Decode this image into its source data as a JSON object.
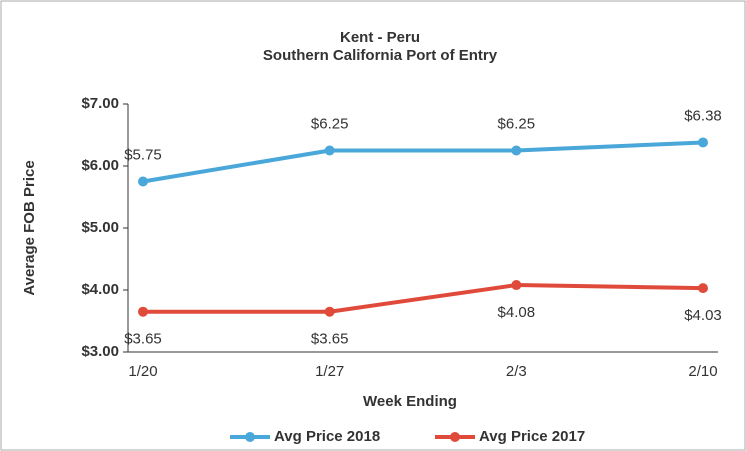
{
  "chart_data": {
    "type": "line",
    "title": [
      "Kent - Peru",
      "Southern California Port of Entry"
    ],
    "x_label": "Week Ending",
    "y_label": "Average FOB Price",
    "categories": [
      "1/20",
      "1/27",
      "2/3",
      "2/10"
    ],
    "series": [
      {
        "name": "Avg Price 2018",
        "color": "#4aa7d9",
        "values": [
          5.75,
          6.25,
          6.25,
          6.38
        ],
        "value_labels": [
          "$5.75",
          "$6.25",
          "$6.25",
          "$6.38"
        ]
      },
      {
        "name": "Avg Price 2017",
        "color": "#e04a3a",
        "values": [
          3.65,
          3.65,
          4.08,
          4.03
        ],
        "value_labels": [
          "$3.65",
          "$3.65",
          "$4.08",
          "$4.03"
        ]
      }
    ],
    "ylim": [
      3,
      7
    ],
    "yticks": [
      {
        "value": 3,
        "label": "$3.00"
      },
      {
        "value": 4,
        "label": "$4.00"
      },
      {
        "value": 5,
        "label": "$5.00"
      },
      {
        "value": 6,
        "label": "$6.00"
      },
      {
        "value": 7,
        "label": "$7.00"
      }
    ],
    "grid": false,
    "legend": "bottom"
  }
}
